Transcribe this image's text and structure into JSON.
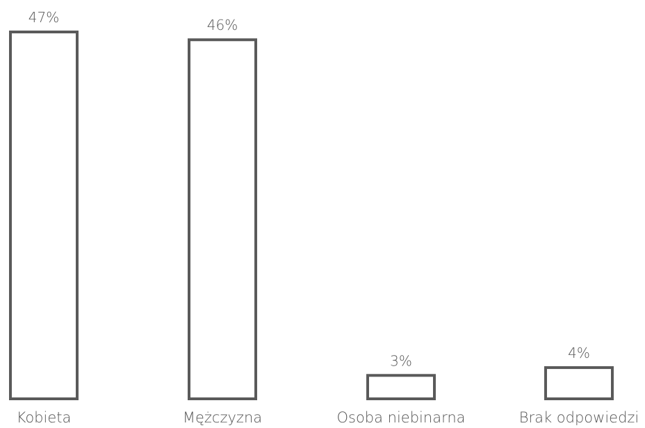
{
  "chart_data": {
    "type": "bar",
    "categories": [
      "Kobieta",
      "Mężczyzna",
      "Osoba niebinarna",
      "Brak odpowiedzi"
    ],
    "values": [
      47,
      46,
      3,
      4
    ],
    "value_labels": [
      "47%",
      "46%",
      "3%",
      "4%"
    ],
    "unit": "%",
    "title": "",
    "xlabel": "",
    "ylabel": "",
    "ylim": [
      0,
      47
    ],
    "grid": false,
    "legend": "none",
    "colors": {
      "bar_stroke": "#5a5a5a",
      "bar_fill": "#ffffff",
      "text": "#555555"
    }
  }
}
